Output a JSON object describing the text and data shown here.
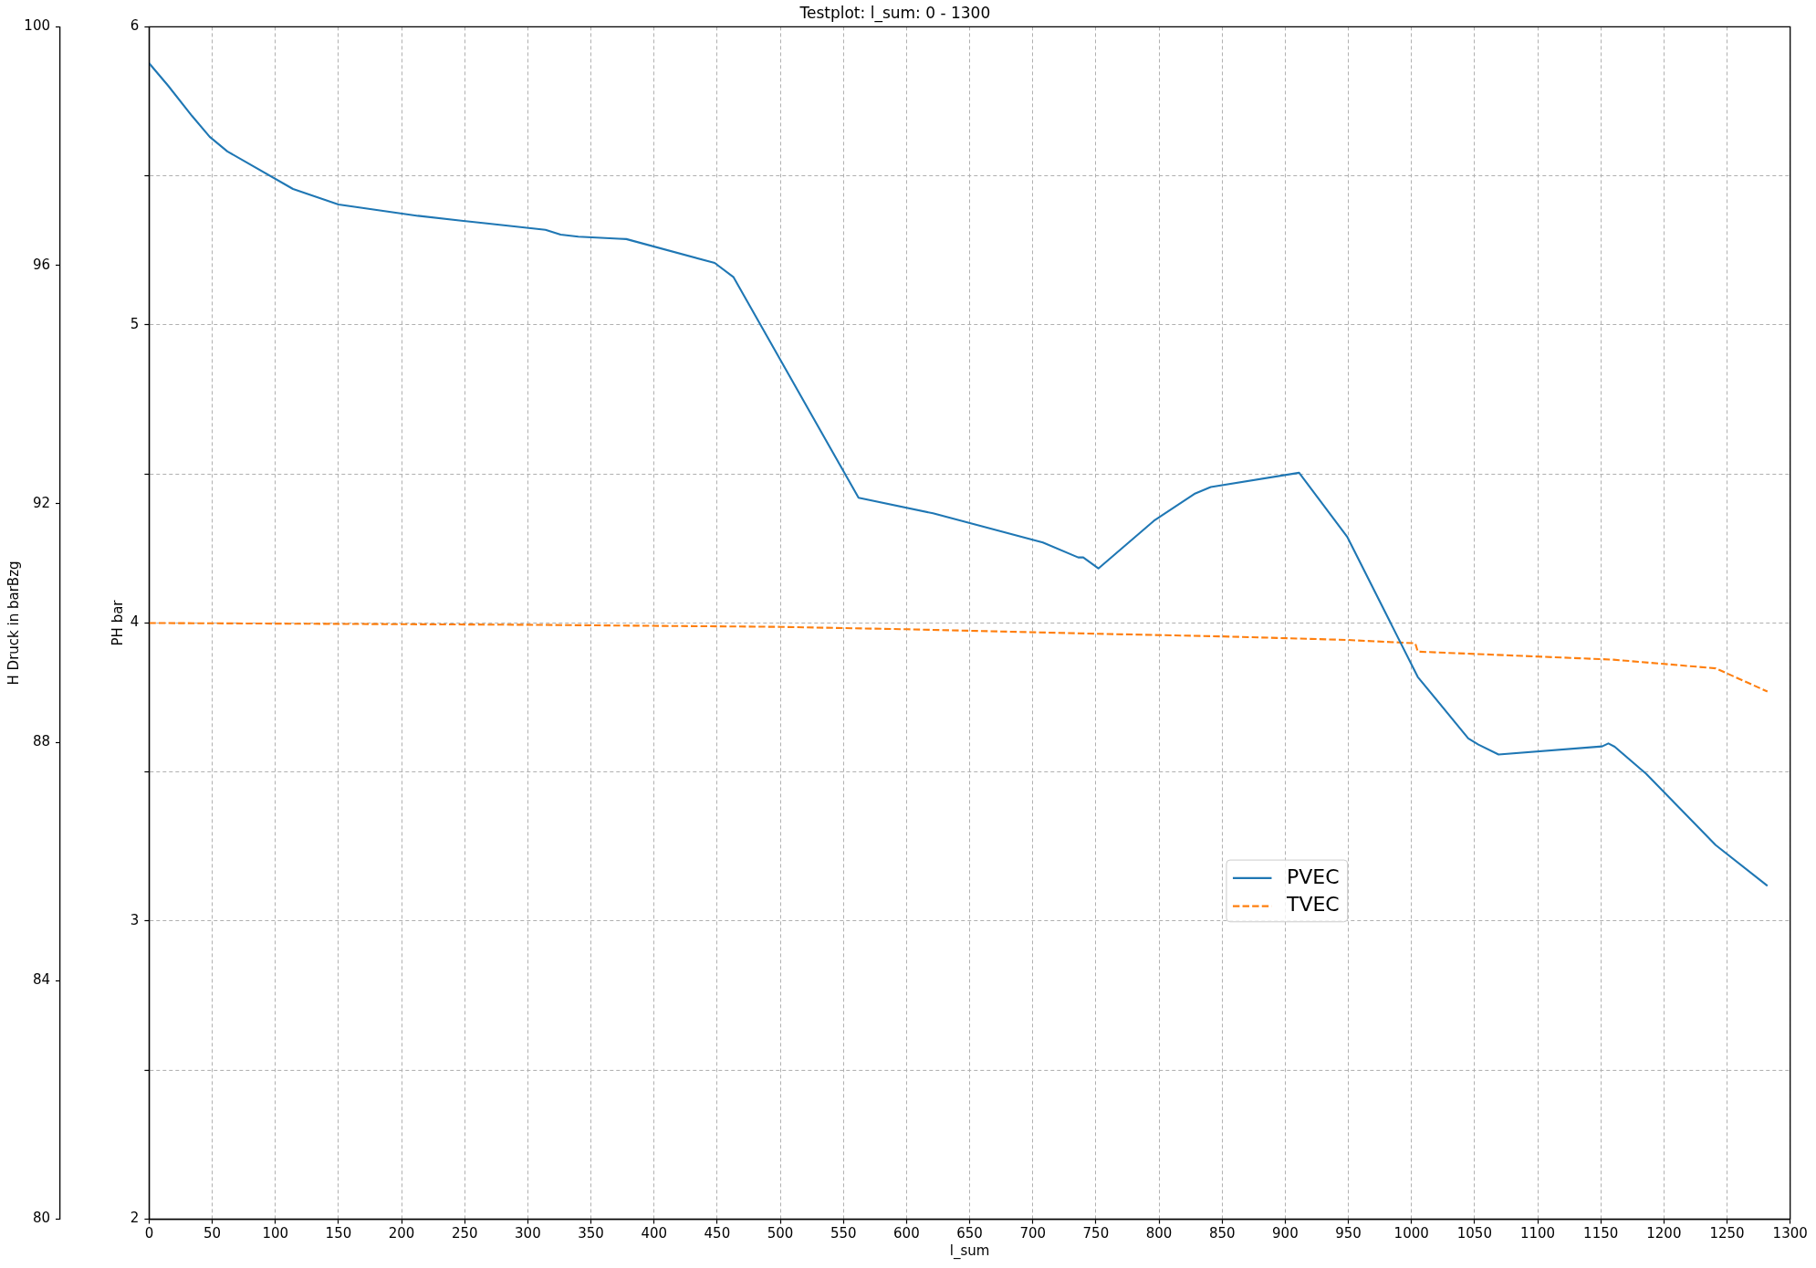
{
  "chart_data": {
    "type": "line",
    "title": "Testplot: l_sum: 0 - 1300",
    "xlabel": "l_sum",
    "ylabel": "PH bar",
    "y2label": "H Druck in barBzg",
    "xlim": [
      0,
      1300
    ],
    "xticks": [
      0,
      50,
      100,
      150,
      200,
      250,
      300,
      350,
      400,
      450,
      500,
      550,
      600,
      650,
      700,
      750,
      800,
      850,
      900,
      950,
      1000,
      1050,
      1100,
      1150,
      1200,
      1250,
      1300
    ],
    "ylim": [
      2,
      6
    ],
    "yticks": [
      2,
      {
        "value": 2.5,
        "label": null
      },
      3,
      {
        "value": 3.5,
        "label": null
      },
      4,
      {
        "value": 4.5,
        "label": null
      },
      5,
      {
        "value": 5.5,
        "label": null
      },
      6
    ],
    "y2lim": [
      80,
      100
    ],
    "y2ticks": [
      80,
      84,
      88,
      92,
      96,
      100
    ],
    "grid": true,
    "legend": "bottom right",
    "marker": "none",
    "series": [
      {
        "name": "PVEC",
        "color": "#1f77b4",
        "line_style": "solid",
        "x": [
          0,
          15,
          34,
          48,
          62,
          114,
          150,
          213,
          266,
          314,
          326,
          340,
          372,
          378,
          448,
          463,
          562,
          621,
          708,
          736,
          740,
          752,
          796,
          828,
          841,
          911,
          949,
          1005,
          1045,
          1053,
          1069,
          1151,
          1156,
          1161,
          1186,
          1241,
          1282
        ],
        "values": [
          5.878,
          5.803,
          5.701,
          5.631,
          5.582,
          5.456,
          5.404,
          5.366,
          5.341,
          5.319,
          5.303,
          5.296,
          5.289,
          5.288,
          5.208,
          5.16,
          4.42,
          4.368,
          4.27,
          4.22,
          4.22,
          4.183,
          4.343,
          4.433,
          4.456,
          4.504,
          4.29,
          3.819,
          3.613,
          3.592,
          3.559,
          3.586,
          3.596,
          3.585,
          3.494,
          3.255,
          3.118
        ]
      },
      {
        "name": "TVEC",
        "color": "#ff7f0e",
        "line_style": "dashed",
        "x": [
          0,
          300,
          500,
          600,
          750,
          850,
          950,
          1003,
          1005,
          1160,
          1241,
          1282
        ],
        "values": [
          4.0,
          3.994,
          3.987,
          3.979,
          3.964,
          3.955,
          3.943,
          3.932,
          3.904,
          3.877,
          3.848,
          3.77
        ]
      }
    ]
  }
}
